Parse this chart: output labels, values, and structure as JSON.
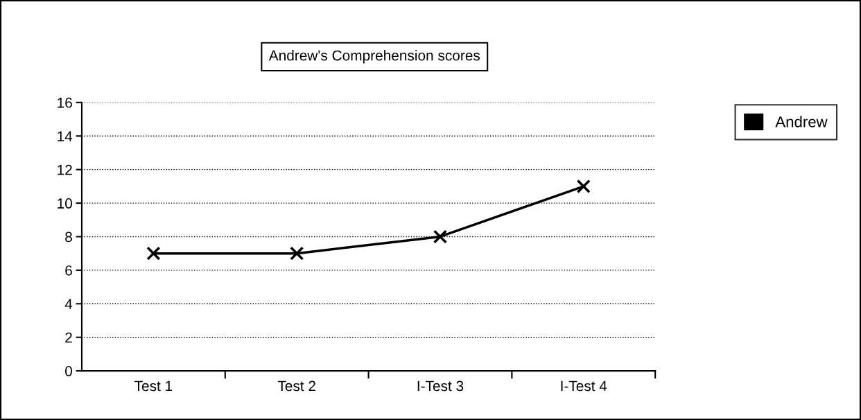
{
  "chart_data": {
    "type": "line",
    "title": "Andrew's Comprehension scores",
    "categories": [
      "Test 1",
      "Test 2",
      "I-Test 3",
      "I-Test 4"
    ],
    "series": [
      {
        "name": "Andrew",
        "color": "#000000",
        "values": [
          7,
          7,
          8,
          11
        ]
      }
    ],
    "ylim": [
      0,
      16
    ],
    "yticks": [
      0,
      2,
      4,
      6,
      8,
      10,
      12,
      14,
      16
    ],
    "grid": "y",
    "legend": "top right",
    "marker": "cross",
    "line_style": "solid"
  }
}
